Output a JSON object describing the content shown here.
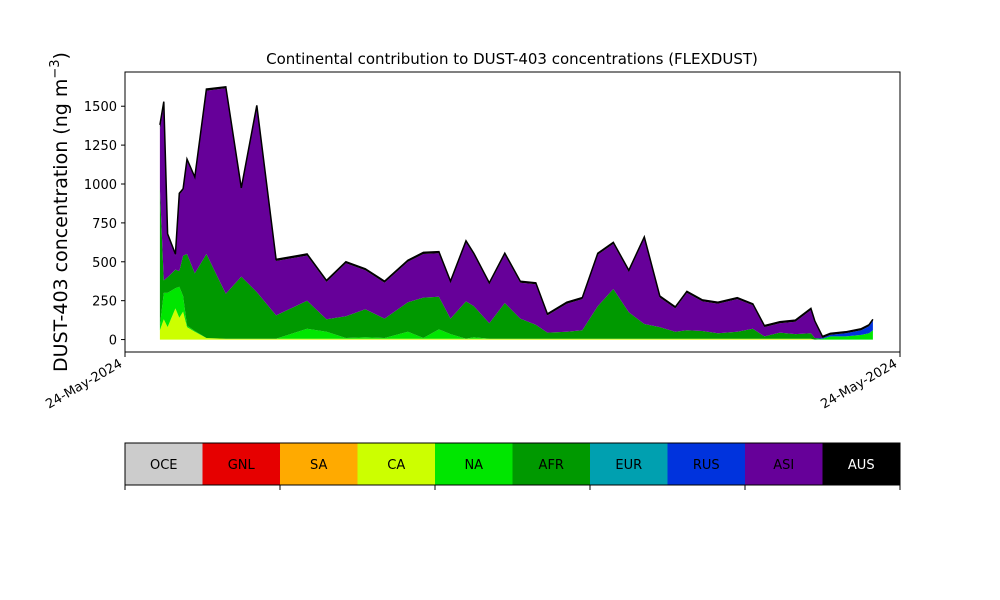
{
  "chart_data": {
    "type": "area",
    "title": "Continental contribution to DUST-403 concentrations (FLEXDUST)",
    "ylabel": "DUST-403 concentration (ng m",
    "ylabel_sup": "−3",
    "ylabel_close": ")",
    "xlabel": "",
    "stacked": true,
    "ylim": [
      -80,
      1720
    ],
    "yticks": [
      0,
      250,
      500,
      750,
      1000,
      1250,
      1500
    ],
    "xlim": [
      0,
      100
    ],
    "xtick_labels": [
      "24-May-2024",
      "24-May-2024"
    ],
    "x": [
      4.5,
      5.0,
      5.5,
      6.5,
      7.0,
      7.5,
      8.0,
      9.0,
      10.5,
      13.0,
      15.0,
      17.0,
      19.5,
      23.5,
      26.0,
      28.5,
      31.0,
      33.5,
      36.5,
      38.5,
      40.5,
      42.0,
      44.0,
      45.0,
      47.0,
      49.0,
      51.0,
      53.0,
      54.5,
      57.0,
      59.0,
      61.0,
      63.0,
      65.0,
      67.0,
      69.0,
      71.0,
      72.5,
      74.5,
      76.5,
      79.0,
      81.0,
      82.5,
      84.5,
      86.5,
      88.5,
      89.0,
      90.0,
      91.0,
      93.0,
      95.0,
      96.0,
      96.5
    ],
    "series": [
      {
        "name": "OCE",
        "color": "#cccccc",
        "values": [
          0,
          0,
          0,
          0,
          0,
          0,
          0,
          0,
          0,
          0,
          0,
          0,
          0,
          0,
          0,
          0,
          0,
          0,
          0,
          0,
          0,
          0,
          0,
          0,
          0,
          0,
          0,
          0,
          0,
          0,
          0,
          0,
          0,
          0,
          0,
          0,
          0,
          0,
          0,
          0,
          0,
          0,
          0,
          0,
          0,
          0,
          0,
          0,
          0,
          0,
          0,
          0,
          0
        ]
      },
      {
        "name": "GNL",
        "color": "#e60000",
        "values": [
          0,
          0,
          0,
          0,
          0,
          0,
          0,
          0,
          0,
          0,
          0,
          0,
          0,
          0,
          0,
          0,
          0,
          0,
          0,
          0,
          0,
          0,
          0,
          0,
          0,
          0,
          0,
          0,
          0,
          0,
          0,
          0,
          0,
          0,
          0,
          0,
          0,
          0,
          0,
          0,
          0,
          0,
          0,
          0,
          0,
          0,
          0,
          0,
          0,
          0,
          0,
          0,
          0
        ]
      },
      {
        "name": "SA",
        "color": "#ffaa00",
        "values": [
          0,
          0,
          0,
          0,
          0,
          0,
          0,
          0,
          0,
          0,
          0,
          0,
          0,
          0,
          0,
          0,
          0,
          0,
          0,
          0,
          0,
          0,
          0,
          0,
          0,
          0,
          0,
          0,
          0,
          0,
          0,
          0,
          0,
          0,
          0,
          0,
          0,
          0,
          0,
          0,
          0,
          0,
          0,
          0,
          0,
          0,
          0,
          0,
          0,
          0,
          0,
          0,
          0
        ]
      },
      {
        "name": "CA",
        "color": "#ccff00",
        "values": [
          60,
          130,
          80,
          200,
          140,
          180,
          80,
          50,
          10,
          5,
          5,
          5,
          5,
          5,
          5,
          5,
          5,
          5,
          5,
          5,
          5,
          5,
          5,
          5,
          5,
          5,
          5,
          5,
          5,
          5,
          5,
          5,
          5,
          5,
          5,
          5,
          5,
          5,
          5,
          5,
          5,
          5,
          5,
          5,
          5,
          5,
          0,
          0,
          0,
          0,
          0,
          0,
          0
        ]
      },
      {
        "name": "NA",
        "color": "#00e600",
        "values": [
          30,
          170,
          220,
          130,
          200,
          100,
          10,
          5,
          0,
          0,
          0,
          0,
          0,
          65,
          45,
          5,
          10,
          5,
          45,
          5,
          60,
          30,
          0,
          10,
          0,
          0,
          0,
          0,
          0,
          0,
          0,
          0,
          0,
          0,
          0,
          0,
          0,
          0,
          0,
          0,
          0,
          0,
          0,
          0,
          0,
          0,
          0,
          5,
          20,
          20,
          30,
          40,
          60
        ]
      },
      {
        "name": "AFR",
        "color": "#009900",
        "values": [
          880,
          80,
          100,
          120,
          100,
          260,
          460,
          370,
          540,
          290,
          400,
          300,
          150,
          180,
          80,
          140,
          180,
          125,
          190,
          260,
          210,
          100,
          240,
          200,
          100,
          230,
          130,
          90,
          40,
          45,
          55,
          210,
          320,
          170,
          95,
          75,
          45,
          55,
          50,
          35,
          45,
          65,
          15,
          40,
          30,
          35,
          10,
          0,
          0,
          0,
          0,
          0,
          0
        ]
      },
      {
        "name": "EUR",
        "color": "#00a0b0",
        "values": [
          0,
          0,
          0,
          0,
          0,
          0,
          0,
          0,
          0,
          0,
          0,
          0,
          0,
          0,
          0,
          0,
          0,
          0,
          0,
          0,
          0,
          0,
          0,
          0,
          0,
          0,
          0,
          0,
          0,
          0,
          0,
          0,
          0,
          0,
          0,
          0,
          0,
          0,
          0,
          0,
          0,
          0,
          0,
          0,
          0,
          0,
          0,
          0,
          0,
          0,
          0,
          0,
          0
        ]
      },
      {
        "name": "RUS",
        "color": "#0033dd",
        "values": [
          0,
          0,
          0,
          0,
          0,
          0,
          0,
          0,
          0,
          0,
          0,
          0,
          0,
          0,
          0,
          0,
          0,
          0,
          0,
          0,
          0,
          0,
          0,
          0,
          0,
          0,
          0,
          0,
          0,
          0,
          0,
          0,
          0,
          0,
          0,
          0,
          0,
          0,
          0,
          0,
          0,
          0,
          0,
          0,
          0,
          0,
          0,
          5,
          10,
          20,
          30,
          45,
          60
        ]
      },
      {
        "name": "ASI",
        "color": "#660099",
        "values": [
          380,
          1130,
          270,
          90,
          490,
          420,
          600,
          610,
          1050,
          1320,
          560,
          1190,
          350,
          290,
          240,
          340,
          250,
          230,
          260,
          280,
          280,
          230,
          380,
          330,
          250,
          310,
          230,
          260,
          110,
          180,
          200,
          330,
          290,
          260,
          550,
          190,
          150,
          240,
          190,
          190,
          210,
          150,
          60,
          60,
          80,
          150,
          100,
          0,
          0,
          0,
          0,
          0,
          0
        ]
      },
      {
        "name": "AUS",
        "color": "#000000",
        "values": [
          30,
          20,
          10,
          10,
          10,
          10,
          10,
          10,
          10,
          10,
          10,
          10,
          10,
          10,
          10,
          10,
          10,
          10,
          10,
          10,
          10,
          10,
          10,
          10,
          10,
          10,
          10,
          10,
          10,
          10,
          10,
          10,
          10,
          10,
          10,
          10,
          10,
          10,
          10,
          10,
          10,
          10,
          10,
          10,
          10,
          10,
          10,
          10,
          10,
          10,
          10,
          10,
          10
        ]
      }
    ],
    "legend_position": "bottom"
  }
}
